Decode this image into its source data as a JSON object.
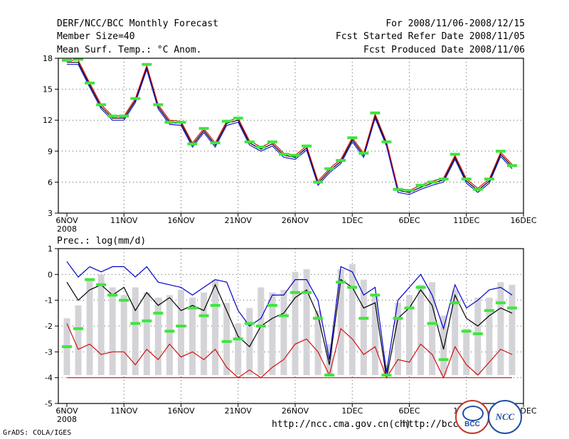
{
  "header": {
    "title": "DERF/NCC/BCC Monthly Forecast",
    "member": "Member Size=40",
    "variable": "Mean Surf. Temp.: °C Anom.",
    "period": "For 2008/11/06-2008/12/15",
    "started": "Fcst Started Refer Date 2008/11/05",
    "produced": "Fcst Produced Date 2008/11/06"
  },
  "footer": {
    "url1": "http://ncc.cma.gov.cn(ch)",
    "url2": "http://bcc.",
    "grads": "GrADS: COLA/IGES",
    "logo_bcc": "BCC",
    "logo_ncc": "NCC"
  },
  "chart_data": [
    {
      "type": "line",
      "title": "Mean Surf. Temp.: °C Anom.",
      "ylim": [
        3,
        18
      ],
      "yticks": [
        3,
        6,
        9,
        12,
        15,
        18
      ],
      "x": [
        0,
        1,
        2,
        3,
        4,
        5,
        6,
        7,
        8,
        9,
        10,
        11,
        12,
        13,
        14,
        15,
        16,
        17,
        18,
        19,
        20,
        21,
        22,
        23,
        24,
        25,
        26,
        27,
        28,
        29,
        30,
        31,
        32,
        33,
        34,
        35,
        36,
        37,
        38,
        39
      ],
      "xticks": [
        0,
        5,
        10,
        15,
        20,
        25,
        30,
        35,
        40
      ],
      "xtick_labels": [
        "6NOV",
        "11NOV",
        "16NOV",
        "21NOV",
        "26NOV",
        "1DEC",
        "6DEC",
        "11DEC",
        "16DEC"
      ],
      "year_label": "2008",
      "grid": true,
      "series": [
        {
          "name": "ensemble mean",
          "values": [
            17.6,
            17.6,
            15.4,
            13.3,
            12.2,
            12.2,
            13.9,
            17.1,
            13.3,
            11.8,
            11.7,
            9.6,
            11.0,
            9.6,
            11.7,
            12.0,
            9.8,
            9.2,
            9.7,
            8.6,
            8.4,
            9.3,
            5.9,
            7.1,
            8.0,
            10.1,
            8.6,
            12.4,
            9.7,
            5.2,
            5.0,
            5.5,
            5.9,
            6.2,
            8.4,
            6.1,
            5.2,
            6.1,
            8.7,
            7.5
          ]
        },
        {
          "name": "upper",
          "values": [
            17.8,
            17.8,
            15.6,
            13.5,
            12.4,
            12.4,
            14.1,
            17.3,
            13.5,
            12.0,
            11.9,
            9.8,
            11.2,
            9.8,
            11.9,
            12.2,
            10.0,
            9.4,
            9.9,
            8.8,
            8.6,
            9.5,
            6.1,
            7.3,
            8.2,
            10.3,
            8.8,
            12.6,
            9.9,
            5.4,
            5.2,
            5.7,
            6.1,
            6.4,
            8.6,
            6.3,
            5.4,
            6.3,
            8.9,
            7.7
          ]
        },
        {
          "name": "lower",
          "values": [
            17.4,
            17.4,
            15.2,
            13.1,
            12.0,
            12.0,
            13.7,
            16.9,
            13.1,
            11.6,
            11.5,
            9.4,
            10.8,
            9.4,
            11.5,
            11.8,
            9.6,
            9.0,
            9.5,
            8.4,
            8.2,
            9.1,
            5.7,
            6.9,
            7.8,
            9.9,
            8.4,
            12.2,
            9.5,
            5.0,
            4.8,
            5.3,
            5.7,
            6.0,
            8.2,
            5.9,
            5.0,
            5.9,
            8.5,
            7.3
          ]
        },
        {
          "name": "observed markers",
          "values": [
            17.8,
            17.9,
            15.6,
            13.5,
            12.4,
            12.4,
            14.1,
            17.4,
            13.5,
            11.8,
            11.8,
            9.7,
            11.2,
            9.8,
            11.9,
            12.2,
            9.9,
            9.4,
            9.9,
            8.7,
            8.6,
            9.5,
            6.0,
            7.3,
            8.1,
            10.3,
            8.8,
            12.7,
            9.9,
            5.3,
            5.2,
            5.7,
            6.0,
            6.3,
            8.7,
            6.3,
            5.3,
            6.3,
            9.0,
            7.6
          ]
        }
      ]
    },
    {
      "type": "bar",
      "title": "Prec.: log(mm/d)",
      "ylim": [
        -5,
        1
      ],
      "yticks": [
        -5,
        -4,
        -3,
        -2,
        -1,
        0,
        1
      ],
      "x": [
        0,
        1,
        2,
        3,
        4,
        5,
        6,
        7,
        8,
        9,
        10,
        11,
        12,
        13,
        14,
        15,
        16,
        17,
        18,
        19,
        20,
        21,
        22,
        23,
        24,
        25,
        26,
        27,
        28,
        29,
        30,
        31,
        32,
        33,
        34,
        35,
        36,
        37,
        38,
        39
      ],
      "xticks": [
        0,
        5,
        10,
        15,
        20,
        25,
        30,
        35,
        40
      ],
      "xtick_labels": [
        "6NOV",
        "11NOV",
        "16NOV",
        "21NOV",
        "26NOV",
        "1DEC",
        "6DEC",
        "11DEC",
        "16DEC"
      ],
      "year_label": "2008",
      "bar_base": -3.9,
      "grid": true,
      "series": [
        {
          "name": "spread high (bars)",
          "values": [
            -1.7,
            -1.2,
            -0.2,
            0.0,
            -0.5,
            -0.8,
            -0.5,
            -0.7,
            -0.9,
            -0.8,
            -0.6,
            -0.9,
            -0.7,
            -0.2,
            -1.1,
            -1.9,
            -1.3,
            -0.5,
            -0.7,
            -0.6,
            0.1,
            0.2,
            -1.4,
            -2.7,
            0.2,
            0.4,
            -0.2,
            -0.8,
            -3.5,
            -1.1,
            -0.8,
            -0.4,
            -0.3,
            -1.6,
            -0.6,
            -2.1,
            -0.9,
            -0.9,
            -0.3,
            -0.4
          ]
        },
        {
          "name": "maximum (blue)",
          "values": [
            0.5,
            -0.1,
            0.3,
            0.1,
            0.3,
            0.3,
            -0.1,
            0.3,
            -0.3,
            -0.4,
            -0.5,
            -0.8,
            -0.5,
            -0.2,
            -0.3,
            -1.4,
            -2.0,
            -1.7,
            -0.8,
            -0.8,
            -0.2,
            -0.2,
            -1.0,
            -3.3,
            0.3,
            0.1,
            -0.8,
            -0.5,
            -3.8,
            -1.0,
            -0.5,
            0.0,
            -0.8,
            -2.1,
            -0.4,
            -1.3,
            -1.0,
            -0.6,
            -0.5,
            -0.8
          ]
        },
        {
          "name": "ensemble mean (black)",
          "values": [
            -0.3,
            -1.0,
            -0.6,
            -0.4,
            -0.8,
            -0.5,
            -1.4,
            -0.7,
            -1.2,
            -0.9,
            -1.4,
            -1.2,
            -1.4,
            -0.4,
            -1.4,
            -2.4,
            -2.8,
            -2.0,
            -1.7,
            -1.5,
            -0.9,
            -0.6,
            -1.6,
            -3.5,
            -0.2,
            -0.5,
            -1.3,
            -1.1,
            -4.0,
            -1.7,
            -1.3,
            -0.6,
            -1.2,
            -2.9,
            -0.8,
            -1.7,
            -2.0,
            -1.6,
            -1.3,
            -1.5
          ]
        },
        {
          "name": "minimum (red)",
          "values": [
            -1.9,
            -2.9,
            -2.7,
            -3.1,
            -3.0,
            -3.0,
            -3.5,
            -2.9,
            -3.3,
            -2.7,
            -3.2,
            -3.0,
            -3.3,
            -2.9,
            -3.6,
            -4.0,
            -3.7,
            -4.0,
            -3.6,
            -3.3,
            -2.7,
            -2.5,
            -3.0,
            -3.9,
            -2.1,
            -2.5,
            -3.1,
            -2.8,
            -4.0,
            -3.3,
            -3.4,
            -2.7,
            -3.1,
            -4.0,
            -2.8,
            -3.5,
            -3.9,
            -3.4,
            -2.9,
            -3.1
          ]
        },
        {
          "name": "observed markers (green)",
          "values": [
            -2.8,
            -2.1,
            -0.2,
            -0.4,
            -0.8,
            -1.0,
            -1.9,
            -1.8,
            -1.5,
            -2.2,
            -2.0,
            -1.3,
            -1.6,
            -1.2,
            -2.6,
            -2.5,
            -1.9,
            -2.0,
            -1.2,
            -1.6,
            -0.7,
            -0.7,
            -1.7,
            -3.9,
            -0.3,
            -0.5,
            -1.7,
            -0.8,
            -3.9,
            -1.7,
            -1.3,
            -0.5,
            -1.9,
            -3.3,
            -1.1,
            -2.2,
            -2.3,
            -1.4,
            -1.1,
            -1.3
          ]
        },
        {
          "name": "floor (red)",
          "values": [
            -4,
            -4,
            -4,
            -4,
            -4,
            -4,
            -4,
            -4,
            -4,
            -4,
            -4,
            -4,
            -4,
            -4,
            -4,
            -4,
            -4,
            -4,
            -4,
            -4,
            -4,
            -4,
            -4,
            -4,
            -4,
            -4,
            -4,
            -4,
            -4,
            -4,
            -4,
            -4,
            -4,
            -4,
            -4,
            -4,
            -4,
            -4,
            -4,
            -4
          ]
        }
      ]
    }
  ]
}
